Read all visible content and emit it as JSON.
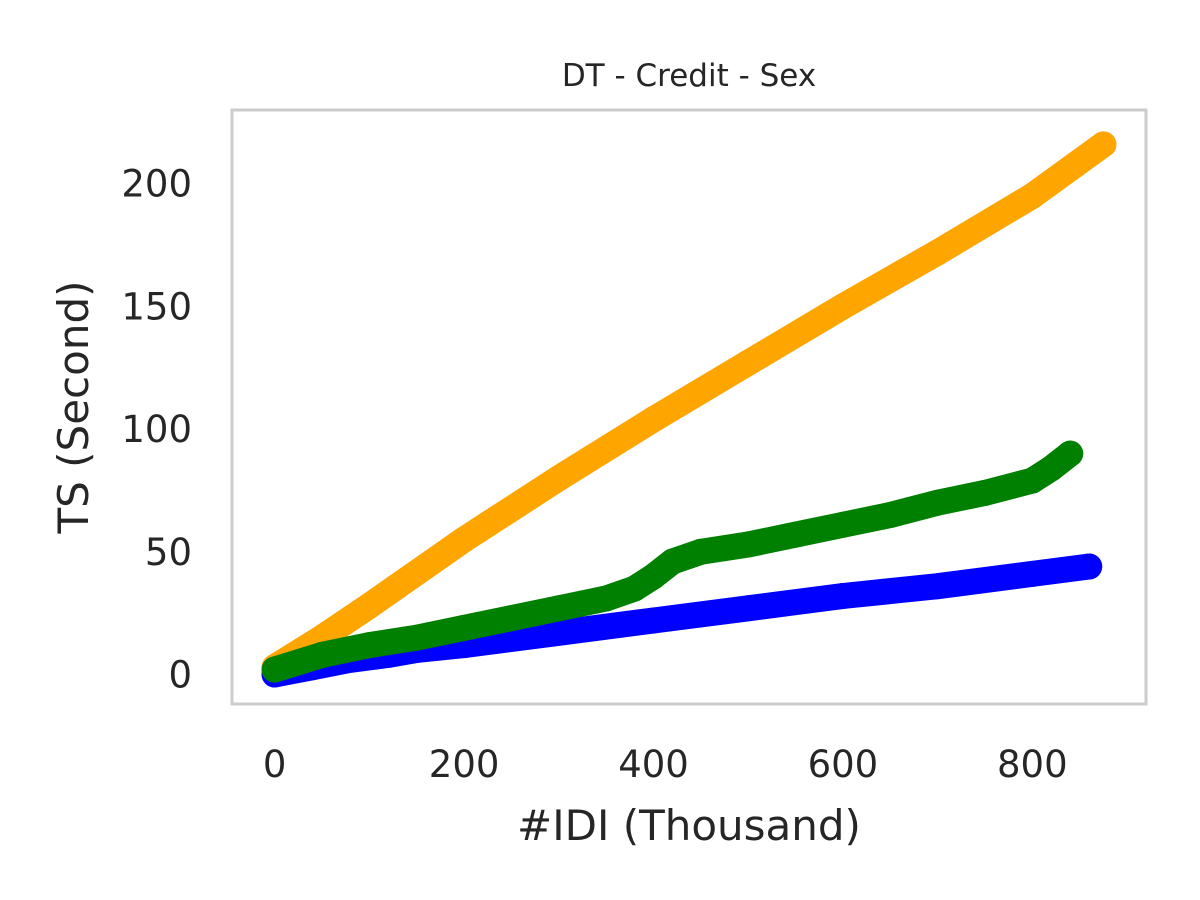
{
  "chart_data": {
    "type": "line",
    "title": "DT - Credit - Sex",
    "xlabel": "#IDI (Thousand)",
    "ylabel": "TS (Second)",
    "xlim": [
      -45,
      920
    ],
    "ylim": [
      -12,
      230
    ],
    "xticks": [
      0,
      200,
      400,
      600,
      800
    ],
    "yticks": [
      0,
      50,
      100,
      150,
      200
    ],
    "grid": false,
    "legend": false,
    "series": [
      {
        "color": "#0000ff",
        "x": [
          0,
          40,
          80,
          120,
          150,
          200,
          300,
          400,
          500,
          600,
          700,
          800,
          860
        ],
        "y": [
          0,
          3,
          6,
          8,
          10,
          12,
          17,
          22,
          27,
          32,
          36,
          41,
          44
        ]
      },
      {
        "color": "#ffa500",
        "x": [
          0,
          50,
          100,
          200,
          300,
          400,
          500,
          600,
          700,
          800,
          875
        ],
        "y": [
          3,
          15,
          28,
          55,
          80,
          104,
          127,
          150,
          172,
          195,
          216
        ]
      },
      {
        "color": "#008000",
        "x": [
          0,
          50,
          100,
          150,
          200,
          250,
          300,
          350,
          380,
          400,
          420,
          450,
          500,
          550,
          600,
          650,
          700,
          750,
          800,
          820,
          840
        ],
        "y": [
          2,
          8,
          12,
          15,
          19,
          23,
          27,
          31,
          35,
          40,
          46,
          50,
          53,
          57,
          61,
          65,
          70,
          74,
          79,
          84,
          90
        ]
      }
    ]
  }
}
